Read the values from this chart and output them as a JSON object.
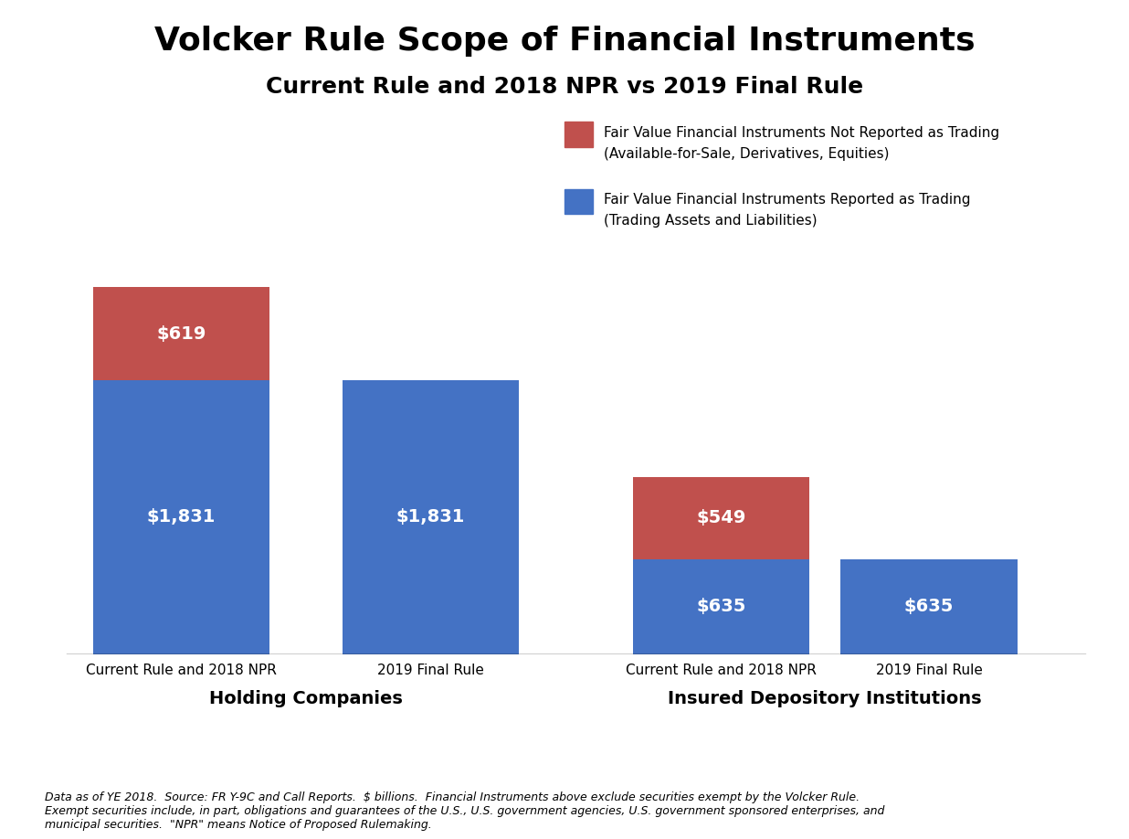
{
  "title": "Volcker Rule Scope of Financial Instruments",
  "subtitle": "Current Rule and 2018 NPR vs 2019 Final Rule",
  "title_fontsize": 26,
  "subtitle_fontsize": 18,
  "bar_color_blue": "#4472C4",
  "bar_color_red": "#C0504D",
  "background_color": "#FFFFFF",
  "bars": [
    {
      "group": "Holding Companies",
      "label": "Current Rule and 2018 NPR",
      "blue": 1831,
      "red": 619
    },
    {
      "group": "Holding Companies",
      "label": "2019 Final Rule",
      "blue": 1831,
      "red": 0
    },
    {
      "group": "Insured Depository Institutions",
      "label": "Current Rule and 2018 NPR",
      "blue": 635,
      "red": 549
    },
    {
      "group": "Insured Depository Institutions",
      "label": "2019 Final Rule",
      "blue": 635,
      "red": 0
    }
  ],
  "legend_red_label1": "Fair Value Financial Instruments Not Reported as Trading",
  "legend_red_label2": "(Available-for-Sale, Derivatives, Equities)",
  "legend_blue_label1": "Fair Value Financial Instruments Reported as Trading",
  "legend_blue_label2": "(Trading Assets and Liabilities)",
  "group1_label": "Holding Companies",
  "group2_label": "Insured Depository Institutions",
  "footnote": "Data as of YE 2018.  Source: FR Y-9C and Call Reports.  $ billions.  Financial Instruments above exclude securities exempt by the Volcker Rule.\nExempt securities include, in part, obligations and guarantees of the U.S., U.S. government agencies, U.S. government sponsored enterprises, and\nmunicipal securities.  \"NPR\" means Notice of Proposed Rulemaking.",
  "bar_positions": [
    0.7,
    1.9,
    3.3,
    4.3
  ],
  "bar_width": 0.85,
  "ylim": [
    0,
    2800
  ],
  "xlim": [
    0.1,
    5.1
  ]
}
